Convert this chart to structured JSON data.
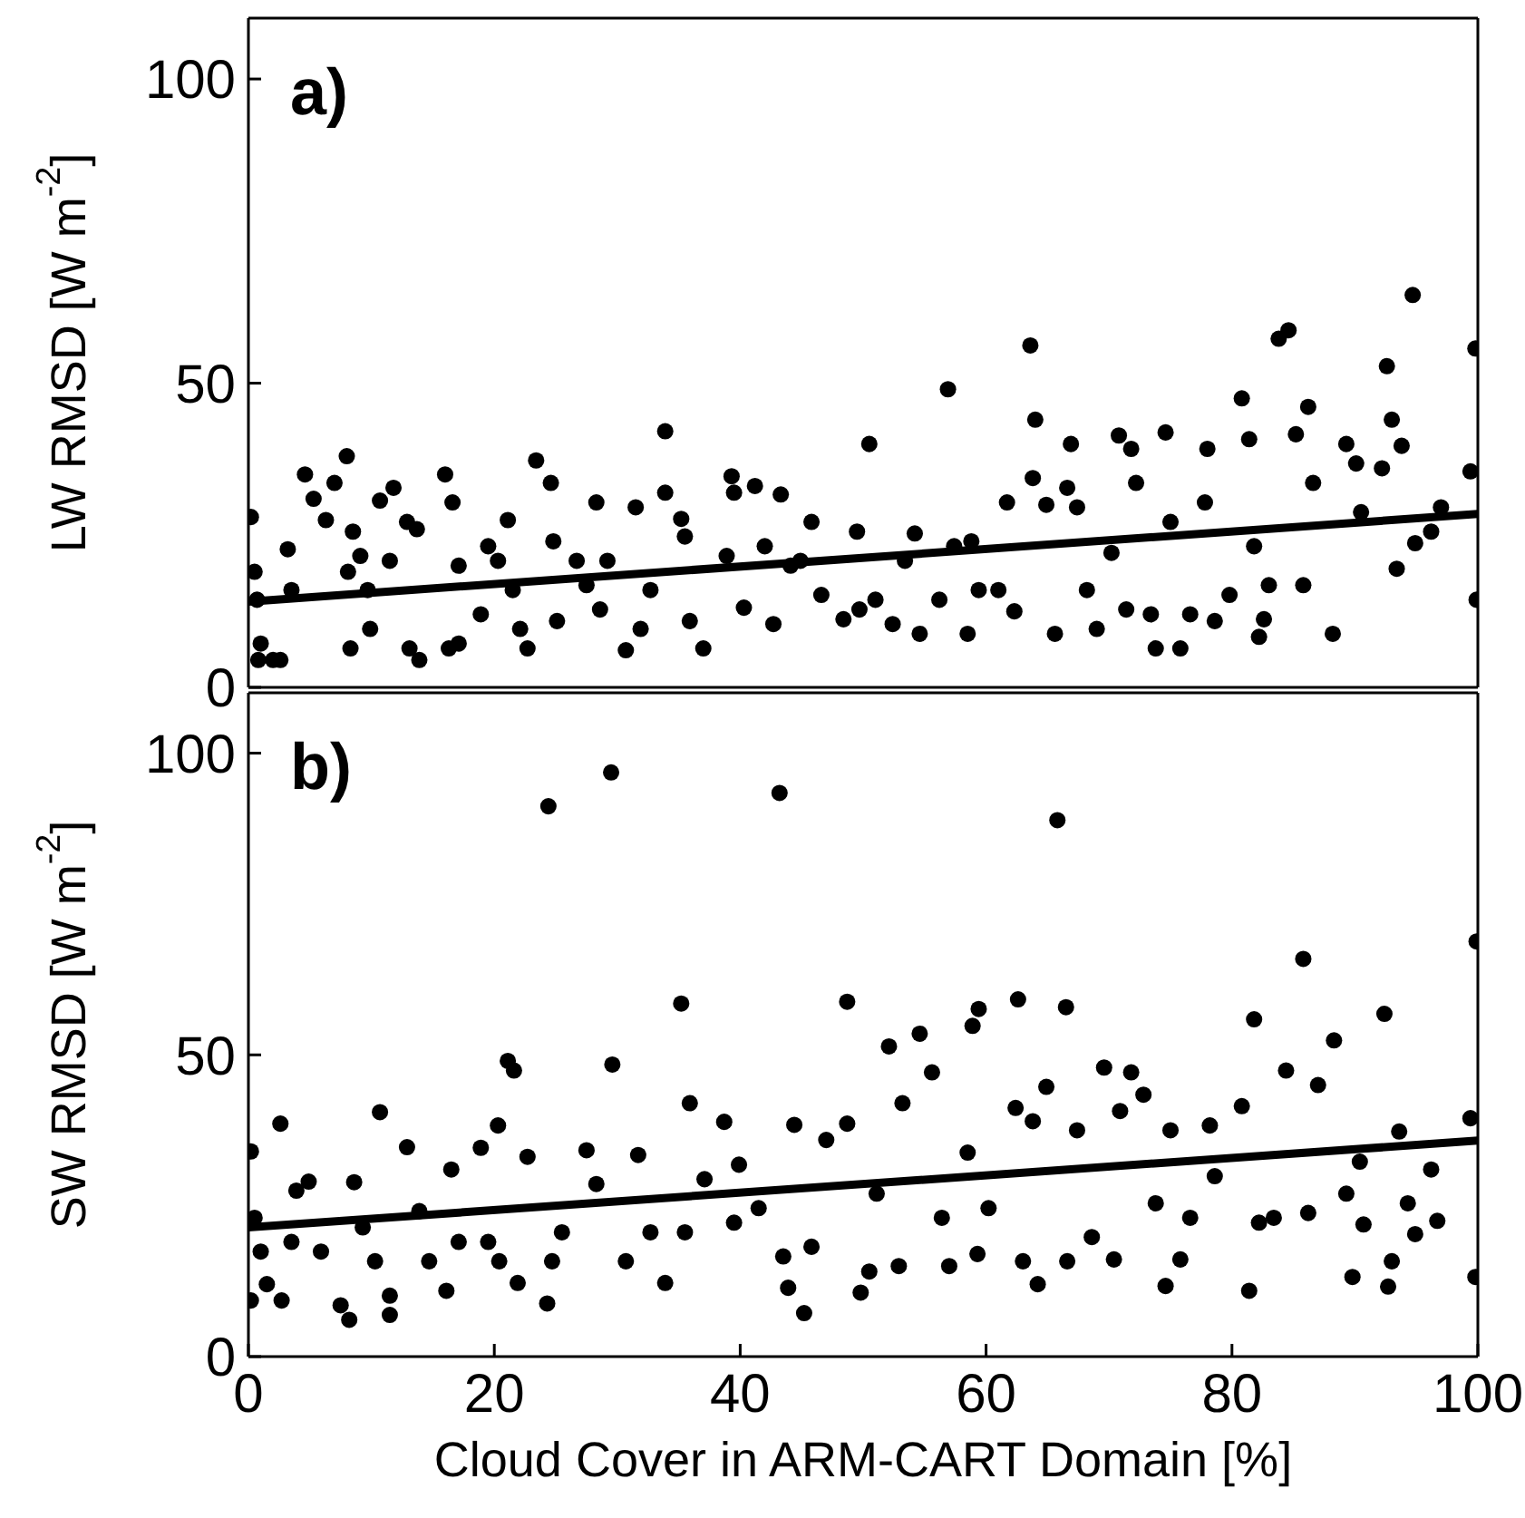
{
  "chart_data": [
    {
      "type": "scatter",
      "ylabel": "LW RMSD [W m$^{-2}$]",
      "annotations": [
        "a)"
      ],
      "tick_labels": "y",
      "xlim": [
        0,
        100
      ],
      "xticks": [
        0,
        20,
        40,
        60,
        80,
        100
      ],
      "ylim": [
        0,
        110
      ],
      "yticks": [
        0,
        50,
        100
      ],
      "series": [
        {
          "marker": "circle",
          "color": "#000000",
          "x": [
            0.2,
            0.5,
            0.7,
            1,
            0.8,
            2,
            2.6,
            3.2,
            3.5,
            4.6,
            5.3,
            6.3,
            7,
            8,
            8.1,
            8.5,
            8.3,
            9.1,
            9.7,
            9.9,
            10.7,
            11.8,
            11.5,
            12.9,
            13.7,
            13.1,
            13.9,
            16,
            16.6,
            17.1,
            17.1,
            16.3,
            18.9,
            19.5,
            20.3,
            21.1,
            21.5,
            22.1,
            22.7,
            23.4,
            24.6,
            24.8,
            25.1,
            26.7,
            27.5,
            28.3,
            28.6,
            29.2,
            30.7,
            31.5,
            31.9,
            32.7,
            33.9,
            33.9,
            35.2,
            35.5,
            35.9,
            37,
            38.9,
            39.3,
            39.5,
            40.3,
            41.2,
            42,
            42.7,
            43.3,
            44.1,
            44.9,
            45.8,
            46.6,
            48.4,
            49.5,
            49.7,
            50.5,
            51,
            52.4,
            53.4,
            54.2,
            54.6,
            56.2,
            56.9,
            57.4,
            58.5,
            58.8,
            59.4,
            61,
            61.7,
            62.3,
            63.6,
            63.8,
            64,
            64.9,
            65.6,
            66.6,
            66.9,
            67.4,
            68.2,
            69,
            70.2,
            70.8,
            71.4,
            71.8,
            72.2,
            73.4,
            73.8,
            74.6,
            75,
            75.8,
            76.6,
            78,
            77.8,
            78.6,
            79.8,
            80.8,
            81.4,
            81.8,
            82.2,
            82.6,
            83,
            83.8,
            84.6,
            85.2,
            86.2,
            85.8,
            86.6,
            88.2,
            89.3,
            90.1,
            90.5,
            92.6,
            92.2,
            93,
            93.4,
            93.8,
            94.7,
            94.9,
            96.2,
            97,
            99.4,
            99.8,
            99.9
          ],
          "values": [
            28,
            19,
            14.4,
            7.2,
            4.5,
            4.5,
            4.5,
            22.7,
            16,
            35,
            31,
            27.5,
            33.6,
            38,
            19,
            25.6,
            6.4,
            21.6,
            16,
            9.6,
            30.7,
            32.8,
            20.8,
            27.2,
            26,
            6.4,
            4.5,
            35,
            30.4,
            20,
            7.2,
            6.4,
            12,
            23.2,
            20.8,
            27.5,
            16,
            9.6,
            6.4,
            37.3,
            33.6,
            24,
            10.9,
            20.8,
            16.8,
            30.4,
            12.8,
            20.8,
            6.1,
            29.6,
            9.6,
            16,
            42.1,
            32,
            27.7,
            24.8,
            10.9,
            6.4,
            21.6,
            34.7,
            32,
            13.1,
            33.1,
            23.2,
            10.4,
            31.7,
            20,
            20.8,
            27.2,
            15.2,
            11.2,
            25.6,
            12.8,
            40,
            14.4,
            10.4,
            20.8,
            25.3,
            8.8,
            14.4,
            49,
            23.2,
            8.8,
            24,
            16,
            16,
            30.4,
            12.5,
            56.2,
            34.4,
            44,
            30,
            8.8,
            32.8,
            40,
            29.6,
            16,
            9.6,
            22.1,
            41.4,
            12.8,
            39.2,
            33.6,
            12,
            6.4,
            41.9,
            27.2,
            6.4,
            12,
            39.2,
            30.4,
            10.9,
            15.2,
            47.5,
            40.8,
            23.2,
            8.3,
            11.2,
            16.8,
            57.3,
            58.7,
            41.6,
            46.1,
            16.8,
            33.6,
            8.8,
            40,
            36.8,
            28.8,
            52.8,
            36,
            44,
            19.5,
            39.7,
            64.5,
            23.7,
            25.6,
            29.6,
            35.5,
            55.7,
            14.4
          ]
        },
        {
          "type": "line",
          "marker": "none",
          "color": "#000000",
          "x": [
            0,
            100
          ],
          "values": [
            14.1,
            28.5
          ]
        }
      ]
    },
    {
      "type": "scatter",
      "xlabel": "Cloud Cover in ARM-CART Domain [%]",
      "ylabel": "SW RMSD [W m$^{-2}$]",
      "annotations": [
        "b)"
      ],
      "xlim": [
        0,
        100
      ],
      "xticks": [
        0,
        20,
        40,
        60,
        80,
        100
      ],
      "ylim": [
        0,
        110
      ],
      "yticks": [
        0,
        50,
        100
      ],
      "series": [
        {
          "marker": "circle",
          "color": "#000000",
          "x": [
            0.2,
            0.2,
            0.5,
            1,
            1.5,
            2.6,
            2.7,
            3.5,
            3.9,
            4.9,
            5.9,
            7.5,
            8.2,
            8.6,
            9.3,
            10.3,
            10.7,
            11.5,
            11.5,
            12.9,
            13.9,
            14.7,
            16.1,
            16.5,
            17.1,
            18.9,
            19.5,
            20.3,
            20.4,
            21.1,
            21.6,
            21.9,
            22.7,
            24.3,
            24.4,
            24.7,
            25.5,
            27.5,
            28.3,
            29.5,
            29.6,
            30.7,
            31.7,
            32.7,
            33.9,
            35.2,
            35.5,
            35.9,
            37.1,
            38.7,
            39.5,
            39.9,
            41.5,
            43.2,
            43.5,
            43.9,
            44.4,
            45.2,
            45.8,
            47,
            48.7,
            48.7,
            49.8,
            50.5,
            51.1,
            52.1,
            52.9,
            53.2,
            54.6,
            55.6,
            56.4,
            57,
            58.5,
            58.9,
            59.4,
            59.3,
            60.2,
            62.6,
            62.4,
            63,
            63.8,
            64.2,
            64.9,
            65.8,
            66.5,
            66.6,
            67.4,
            68.6,
            69.6,
            70.4,
            70.9,
            71.8,
            72.8,
            73.8,
            74.6,
            75,
            75.8,
            76.6,
            78.2,
            78.6,
            80.8,
            81.4,
            81.8,
            82.2,
            83.4,
            84.4,
            85.8,
            86.2,
            87,
            88.3,
            89.3,
            89.8,
            90.7,
            90.4,
            92.4,
            92.7,
            93,
            93.6,
            94.3,
            94.9,
            96.2,
            96.7,
            99.4,
            99.8,
            99.9
          ],
          "values": [
            34,
            9.3,
            23,
            17.4,
            12,
            38.6,
            9.3,
            19,
            27.5,
            29,
            17.4,
            8.5,
            6.1,
            28.9,
            21.4,
            15.8,
            40.5,
            6.9,
            10.1,
            34.7,
            24.1,
            15.8,
            10.9,
            31,
            19,
            34.6,
            19,
            38.3,
            15.8,
            49,
            47.4,
            12.2,
            33.1,
            8.8,
            91.2,
            15.8,
            20.6,
            34.2,
            28.6,
            96.8,
            48.4,
            15.8,
            33.4,
            20.6,
            12.2,
            58.5,
            20.6,
            42,
            29.4,
            38.9,
            22.2,
            31.8,
            24.6,
            93.4,
            16.6,
            11.4,
            38.4,
            7.2,
            18.2,
            35.9,
            58.8,
            38.6,
            10.6,
            14.1,
            27,
            51.4,
            15,
            42,
            53.5,
            47.1,
            23,
            15,
            33.8,
            54.8,
            57.6,
            17,
            24.6,
            59.2,
            41.2,
            15.8,
            39,
            12,
            44.7,
            88.9,
            57.9,
            15.8,
            37.5,
            19.8,
            47.9,
            16.1,
            40.7,
            47.1,
            43.4,
            25.4,
            11.7,
            37.5,
            16.1,
            23,
            38.3,
            29.9,
            41.5,
            10.9,
            55.9,
            22.2,
            23,
            47.4,
            65.9,
            23.8,
            45,
            52.4,
            27,
            13.2,
            21.9,
            32.3,
            56.8,
            11.6,
            15.8,
            37.3,
            25.4,
            20.3,
            31,
            22.5,
            39.5,
            13.2,
            68.8
          ]
        },
        {
          "type": "line",
          "marker": "none",
          "color": "#000000",
          "x": [
            0,
            100
          ],
          "values": [
            21.4,
            35.8
          ]
        }
      ]
    }
  ]
}
